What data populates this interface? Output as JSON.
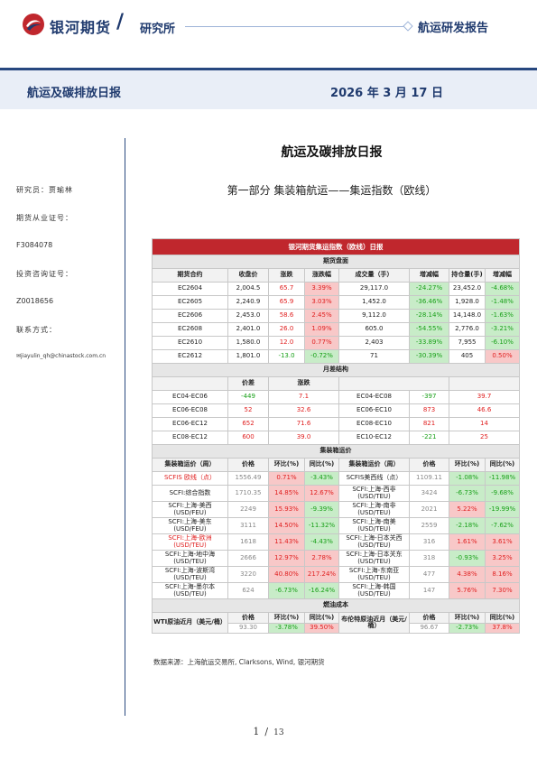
{
  "header": {
    "company": "银河期货",
    "institute": "研究所",
    "report_type": "航运研发报告",
    "colors": {
      "brand_blue": "#1f3a6e",
      "brand_red": "#c0272d"
    }
  },
  "title_bar": {
    "title": "航运及碳排放日报",
    "date": "2026 年 3 月 17 日"
  },
  "sidebar": {
    "analyst": "研究员：贾瑜林",
    "license_label": "期货从业证号：",
    "license_no": "F3084078",
    "consult_label": "投资咨询证号：",
    "consult_no": "Z0018656",
    "contact_label": "联系方式：",
    "email": "jiayulin_qh@chinastock.com.cn"
  },
  "main": {
    "title": "航运及碳排放日报",
    "subtitle": "第一部分   集装箱航运——集运指数（欧线）"
  },
  "table": {
    "banner": "银河期货集运指数（欧线）日报",
    "futures": {
      "section": "期货盘面",
      "headers": [
        "期货合约",
        "收盘价",
        "涨跌",
        "涨跌幅",
        "成交量（手）",
        "增减幅",
        "持仓量(手)",
        "增减幅"
      ],
      "rows": [
        [
          "EC2604",
          "2,004.5",
          "65.7",
          "3.39%",
          "29,117.0",
          "-24.27%",
          "23,452.0",
          "-4.68%"
        ],
        [
          "EC2605",
          "2,240.9",
          "65.9",
          "3.03%",
          "1,452.0",
          "-36.46%",
          "1,928.0",
          "-1.48%"
        ],
        [
          "EC2606",
          "2,453.0",
          "58.6",
          "2.45%",
          "9,112.0",
          "-28.14%",
          "14,148.0",
          "-1.63%"
        ],
        [
          "EC2608",
          "2,401.0",
          "26.0",
          "1.09%",
          "605.0",
          "-54.55%",
          "2,776.0",
          "-3.21%"
        ],
        [
          "EC2610",
          "1,580.0",
          "12.0",
          "0.77%",
          "2,403",
          "-33.89%",
          "7,955",
          "-6.10%"
        ],
        [
          "EC2612",
          "1,801.0",
          "-13.0",
          "-0.72%",
          "71",
          "-30.39%",
          "405",
          "0.50%"
        ]
      ]
    },
    "spread": {
      "section": "月差结构",
      "headers": [
        "",
        "价差",
        "涨跌",
        "",
        "价差",
        "涨跌"
      ],
      "rows": [
        [
          "EC04-EC06",
          "-449",
          "7.1",
          "EC04-EC08",
          "-397",
          "39.7"
        ],
        [
          "EC06-EC08",
          "52",
          "32.6",
          "EC06-EC10",
          "873",
          "46.6"
        ],
        [
          "EC06-EC12",
          "652",
          "71.6",
          "EC08-EC10",
          "821",
          "14"
        ],
        [
          "EC08-EC12",
          "600",
          "39.0",
          "EC10-EC12",
          "-221",
          "25"
        ]
      ]
    },
    "spot": {
      "section": "集装箱运价",
      "headers": [
        "集装箱运价（周）",
        "价格",
        "环比(%)",
        "同比(%)",
        "集装箱运价（周）",
        "价格",
        "环比(%)",
        "同比(%)"
      ],
      "rows": [
        [
          "SCFIS 欧线（点）",
          "1556.49",
          "0.71%",
          "-3.43%",
          "SCFIS美西线（点）",
          "1109.11",
          "-1.08%",
          "-11.98%"
        ],
        [
          "SCFI:综合指数",
          "1710.35",
          "14.85%",
          "12.67%",
          "SCFI:上海-西非(USD/TEU)",
          "3424",
          "-6.73%",
          "-9.68%"
        ],
        [
          "SCFI:上海-美西(USD/FEU)",
          "2249",
          "15.93%",
          "-9.39%",
          "SCFI:上海-南非(USD/TEU)",
          "2021",
          "5.22%",
          "-19.99%"
        ],
        [
          "SCFI:上海-美东(USD/FEU)",
          "3111",
          "14.50%",
          "-11.32%",
          "SCFI:上海-南美(USD/TEU)",
          "2559",
          "-2.18%",
          "-7.62%"
        ],
        [
          "SCFI:上海-欧洲(USD/TEU)",
          "1618",
          "11.43%",
          "-4.43%",
          "SCFI:上海-日本关西(USD/TEU)",
          "316",
          "1.61%",
          "3.61%"
        ],
        [
          "SCFI:上海-地中海(USD/TEU)",
          "2666",
          "12.97%",
          "2.78%",
          "SCFI:上海-日本关东(USD/TEU)",
          "318",
          "-0.93%",
          "3.25%"
        ],
        [
          "SCFI:上海-波斯湾(USD/TEU)",
          "3220",
          "40.80%",
          "217.24%",
          "SCFI:上海-东南亚(USD/TEU)",
          "477",
          "4.38%",
          "8.16%"
        ],
        [
          "SCFI:上海-墨尔本(USD/TEU)",
          "624",
          "-6.73%",
          "-16.24%",
          "SCFI:上海-韩国(USD/TEU)",
          "147",
          "5.76%",
          "7.30%"
        ]
      ]
    },
    "fuel": {
      "section": "燃油成本",
      "headers": [
        "价格",
        "环比(%)",
        "同比(%)",
        "价格",
        "环比(%)",
        "同比(%)"
      ],
      "wti_label": "WTI原油近月（美元/桶）",
      "brent_label": "布伦特原油近月（美元/桶）",
      "wti": [
        "93.30",
        "-3.78%",
        "39.50%"
      ],
      "brent": [
        "96.67",
        "-2.73%",
        "37.8%"
      ]
    }
  },
  "source": "数据来源：上海航运交易所, Clarksons, Wind, 银河期货",
  "pager": {
    "current": "1",
    "total": "13"
  }
}
